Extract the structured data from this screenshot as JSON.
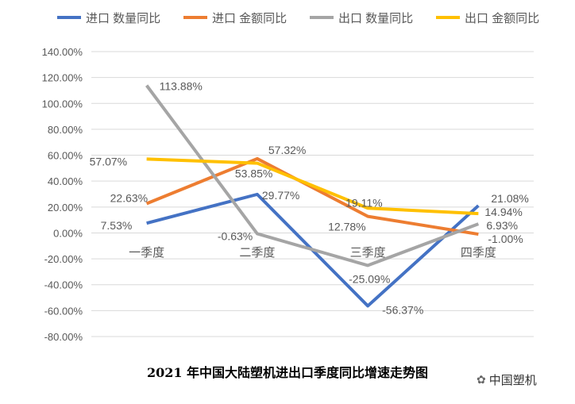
{
  "chart_data": {
    "type": "line",
    "title": "2021 年中国大陆塑机进出口季度同比增速走势图",
    "categories": [
      "一季度",
      "二季度",
      "三季度",
      "四季度"
    ],
    "ylim": [
      -80,
      140
    ],
    "yticks": [
      140,
      120,
      100,
      80,
      60,
      40,
      20,
      0,
      -20,
      -40,
      -60,
      -80
    ],
    "ytick_format": "%",
    "grid": true,
    "legend": "top",
    "series": [
      {
        "name": "进口 数量同比",
        "color": "#4472C4",
        "values": [
          7.53,
          29.77,
          -56.37,
          21.08
        ]
      },
      {
        "name": "进口 金额同比",
        "color": "#ED7D31",
        "values": [
          22.63,
          57.32,
          12.78,
          -1.0
        ]
      },
      {
        "name": "出口 数量同比",
        "color": "#A5A5A5",
        "values": [
          113.88,
          -0.63,
          -25.09,
          6.93
        ]
      },
      {
        "name": "出口 金额同比",
        "color": "#FFC000",
        "values": [
          57.07,
          53.85,
          19.11,
          14.94
        ]
      }
    ]
  },
  "watermark": "中国塑机"
}
